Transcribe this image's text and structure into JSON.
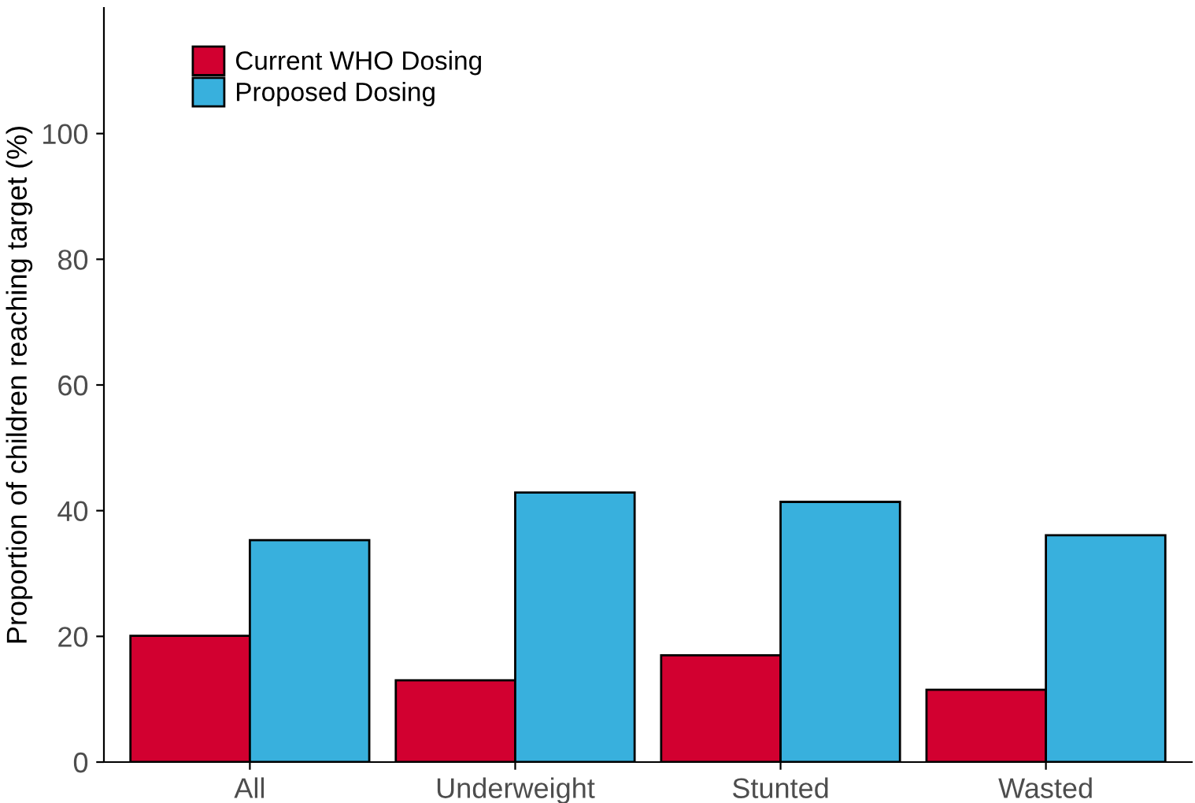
{
  "chart_data": {
    "type": "bar",
    "ylabel": "Proportion of children reaching target (%)",
    "categories": [
      "All",
      "Underweight",
      "Stunted",
      "Wasted"
    ],
    "series": [
      {
        "name": "Current WHO Dosing",
        "color": "#d20030",
        "values": [
          20.1,
          13.0,
          17.0,
          11.5
        ]
      },
      {
        "name": "Proposed Dosing",
        "color": "#38b0dd",
        "values": [
          35.3,
          42.9,
          41.4,
          36.1
        ]
      }
    ],
    "ylim": [
      0,
      120
    ],
    "yticks": [
      0,
      20,
      40,
      60,
      80,
      100
    ],
    "grid": false,
    "legend": "top left"
  }
}
